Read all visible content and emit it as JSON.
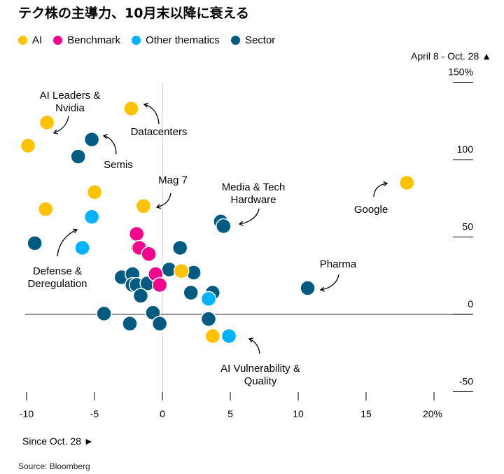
{
  "title": "テク株の主導力、10月末以降に衰える",
  "legend": [
    {
      "label": "AI",
      "color": "#FFC200"
    },
    {
      "label": "Benchmark",
      "color": "#F2078C"
    },
    {
      "label": "Other thematics",
      "color": "#00B2FF"
    },
    {
      "label": "Sector",
      "color": "#005A82"
    }
  ],
  "top_note": "April 8 - Oct. 28 ▲",
  "bottom_note": "Since Oct. 28 ►",
  "source": "Source: Bloomberg",
  "chart_data": {
    "type": "scatter",
    "xlabel": "Since Oct. 28 ►",
    "ylabel": "April 8 - Oct. 28 ▲",
    "xlim": [
      -10.5,
      22.5
    ],
    "ylim": [
      -55,
      155
    ],
    "x_ticks": [
      "-10",
      "-5",
      "0",
      "5",
      "10",
      "15",
      "20%"
    ],
    "x_tick_values": [
      -10,
      -5,
      0,
      5,
      10,
      15,
      20
    ],
    "y_ticks": [
      "150%",
      "100",
      "50",
      "0",
      "-50"
    ],
    "y_tick_values": [
      150,
      100,
      50,
      0,
      -50
    ],
    "series": [
      {
        "name": "Sector",
        "color": "#005A82",
        "points": [
          [
            -5.2,
            113
          ],
          [
            -6.2,
            102
          ],
          [
            -9.4,
            46
          ],
          [
            4.3,
            60
          ],
          [
            4.5,
            57
          ],
          [
            -1.8,
            43
          ],
          [
            1.3,
            43
          ],
          [
            0.5,
            29
          ],
          [
            2.3,
            27
          ],
          [
            -3.0,
            24
          ],
          [
            -2.2,
            26
          ],
          [
            -2.2,
            19
          ],
          [
            -1.9,
            19
          ],
          [
            -1.1,
            20
          ],
          [
            -1.6,
            12
          ],
          [
            2.1,
            14
          ],
          [
            3.7,
            14
          ],
          [
            -4.3,
            0.5
          ],
          [
            -0.7,
            1
          ],
          [
            -2.4,
            -6
          ],
          [
            -0.2,
            -6
          ],
          [
            3.4,
            -3
          ],
          [
            10.7,
            17
          ]
        ]
      },
      {
        "name": "Other thematics",
        "color": "#00B2FF",
        "points": [
          [
            -5.2,
            63
          ],
          [
            -5.9,
            43
          ],
          [
            3.4,
            10
          ],
          [
            4.9,
            -14
          ]
        ]
      },
      {
        "name": "Benchmark",
        "color": "#F2078C",
        "points": [
          [
            -1.9,
            52
          ],
          [
            -1.7,
            43
          ],
          [
            -1.0,
            39
          ],
          [
            -0.5,
            26
          ],
          [
            -0.2,
            19
          ]
        ]
      },
      {
        "name": "AI",
        "color": "#FFC200",
        "points": [
          [
            -2.3,
            133
          ],
          [
            -8.5,
            124
          ],
          [
            -9.9,
            109
          ],
          [
            -5.0,
            79
          ],
          [
            -8.6,
            68
          ],
          [
            -1.4,
            70
          ],
          [
            1.4,
            28
          ],
          [
            3.7,
            -14
          ],
          [
            18.0,
            85
          ]
        ]
      }
    ],
    "annotations": [
      {
        "text": [
          "AI Leaders &",
          "Nvidia"
        ]
      },
      {
        "text": [
          "Datacenters"
        ]
      },
      {
        "text": [
          "Semis"
        ]
      },
      {
        "text": [
          "Mag 7"
        ]
      },
      {
        "text": [
          "Media & Tech",
          "Hardware"
        ]
      },
      {
        "text": [
          "Google"
        ]
      },
      {
        "text": [
          "Pharma"
        ]
      },
      {
        "text": [
          "Defense &",
          "Deregulation"
        ]
      },
      {
        "text": [
          "AI Vulnerability &",
          "Quality"
        ]
      }
    ],
    "grid": false
  }
}
